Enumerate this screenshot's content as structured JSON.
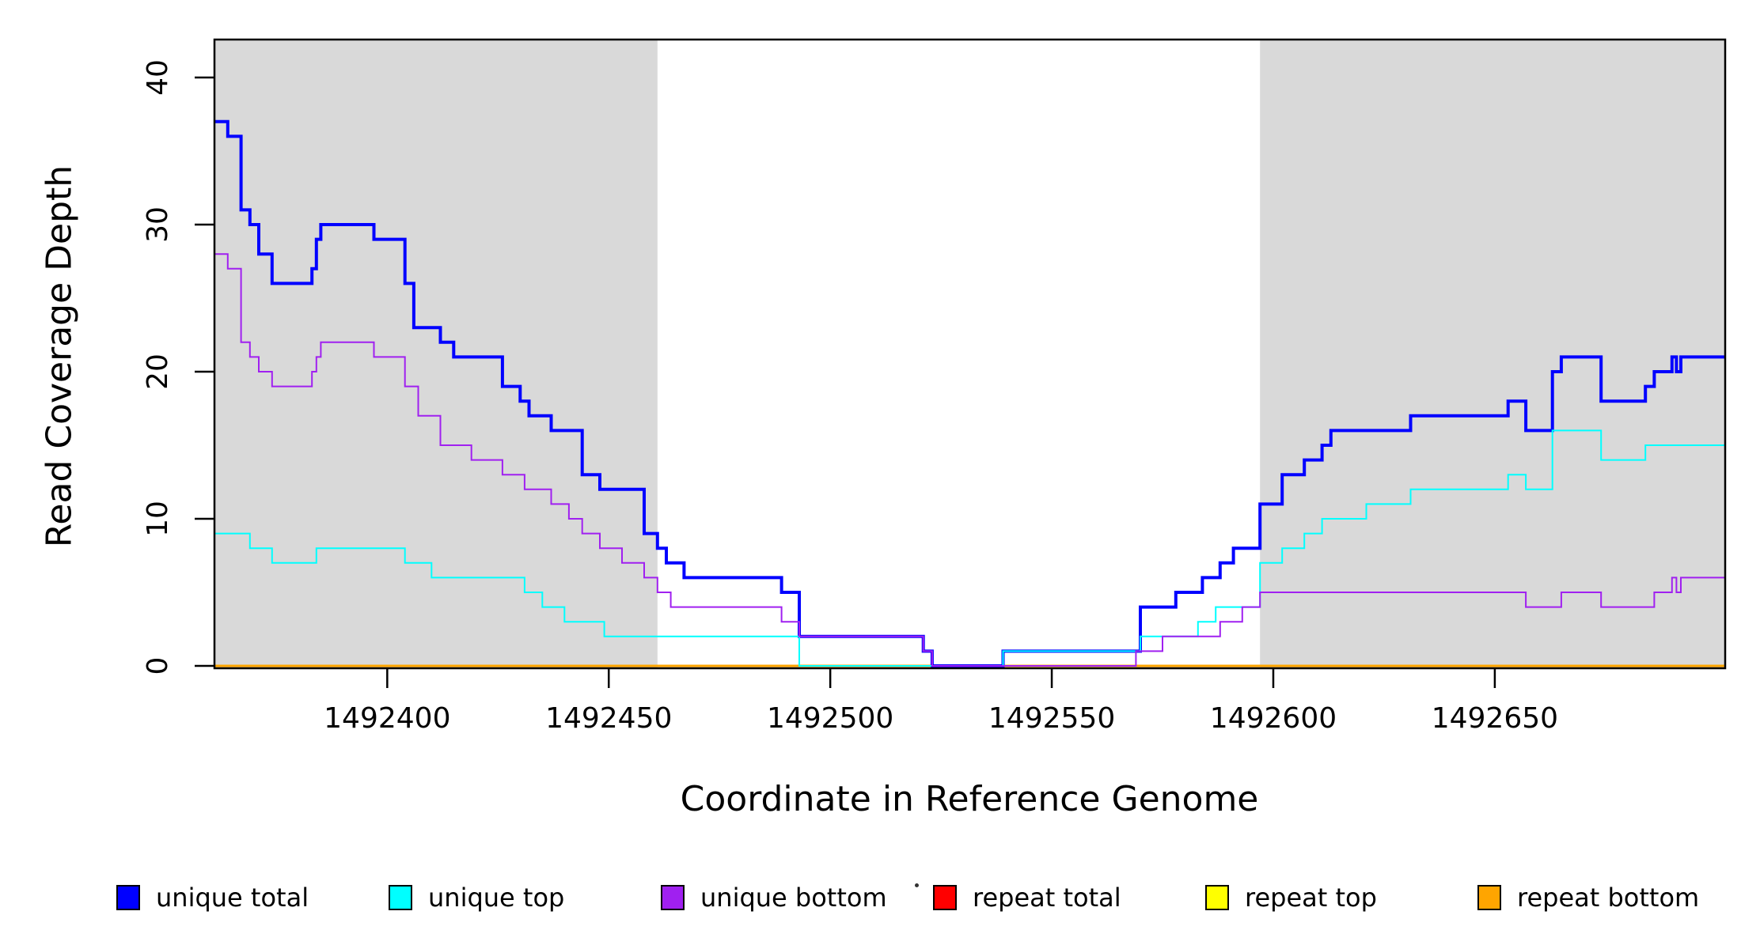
{
  "figure": {
    "xlabel": "Coordinate in Reference Genome",
    "ylabel": "Read Coverage Depth",
    "background_color": "#FFFFFF",
    "shaded_region_color": "#D9D9D9"
  },
  "chart_data": {
    "type": "line",
    "subtype": "step-hv",
    "title": "",
    "xlabel": "Coordinate in Reference Genome",
    "ylabel": "Read Coverage Depth",
    "xlim": [
      1492361,
      1492702
    ],
    "ylim": [
      0,
      42.7
    ],
    "x_ticks": [
      1492400,
      1492450,
      1492500,
      1492550,
      1492600,
      1492650
    ],
    "y_ticks": [
      0,
      10,
      20,
      30,
      40
    ],
    "grid": false,
    "legend_position": "bottom",
    "shaded_regions": [
      {
        "name": "left-gray-region",
        "x0": 1492361,
        "x1": 1492461
      },
      {
        "name": "right-gray-region",
        "x0": 1492597,
        "x1": 1492702
      }
    ],
    "draw_order": [
      "repeat total",
      "repeat top",
      "repeat bottom",
      "unique total",
      "unique top",
      "unique bottom"
    ],
    "series": [
      {
        "name": "unique total",
        "color": "#0000FF",
        "line_width": 4,
        "points": [
          [
            1492361,
            37
          ],
          [
            1492364,
            36
          ],
          [
            1492367,
            31
          ],
          [
            1492369,
            30
          ],
          [
            1492371,
            28
          ],
          [
            1492374,
            26
          ],
          [
            1492383,
            27
          ],
          [
            1492384,
            29
          ],
          [
            1492385,
            30
          ],
          [
            1492397,
            29
          ],
          [
            1492404,
            26
          ],
          [
            1492406,
            23
          ],
          [
            1492412,
            22
          ],
          [
            1492415,
            21
          ],
          [
            1492426,
            19
          ],
          [
            1492430,
            18
          ],
          [
            1492432,
            17
          ],
          [
            1492437,
            16
          ],
          [
            1492444,
            13
          ],
          [
            1492448,
            12
          ],
          [
            1492458,
            9
          ],
          [
            1492461,
            8
          ],
          [
            1492463,
            7
          ],
          [
            1492467,
            6
          ],
          [
            1492489,
            5
          ],
          [
            1492493,
            2
          ],
          [
            1492521,
            1
          ],
          [
            1492523,
            0
          ],
          [
            1492539,
            1
          ],
          [
            1492570,
            4
          ],
          [
            1492578,
            5
          ],
          [
            1492584,
            6
          ],
          [
            1492588,
            7
          ],
          [
            1492591,
            8
          ],
          [
            1492597,
            11
          ],
          [
            1492602,
            13
          ],
          [
            1492607,
            14
          ],
          [
            1492611,
            15
          ],
          [
            1492613,
            16
          ],
          [
            1492631,
            17
          ],
          [
            1492653,
            18
          ],
          [
            1492657,
            16
          ],
          [
            1492663,
            20
          ],
          [
            1492665,
            21
          ],
          [
            1492674,
            18
          ],
          [
            1492684,
            19
          ],
          [
            1492686,
            20
          ],
          [
            1492690,
            21
          ],
          [
            1492691,
            20
          ],
          [
            1492692,
            21
          ]
        ]
      },
      {
        "name": "unique top",
        "color": "#00FFFF",
        "line_width": 2,
        "points": [
          [
            1492361,
            9
          ],
          [
            1492369,
            8
          ],
          [
            1492374,
            7
          ],
          [
            1492384,
            8
          ],
          [
            1492404,
            7
          ],
          [
            1492410,
            6
          ],
          [
            1492431,
            5
          ],
          [
            1492435,
            4
          ],
          [
            1492440,
            3
          ],
          [
            1492449,
            2
          ],
          [
            1492493,
            0
          ],
          [
            1492539,
            1
          ],
          [
            1492570,
            2
          ],
          [
            1492583,
            3
          ],
          [
            1492587,
            4
          ],
          [
            1492597,
            7
          ],
          [
            1492602,
            8
          ],
          [
            1492607,
            9
          ],
          [
            1492611,
            10
          ],
          [
            1492621,
            11
          ],
          [
            1492631,
            12
          ],
          [
            1492653,
            13
          ],
          [
            1492657,
            12
          ],
          [
            1492663,
            16
          ],
          [
            1492674,
            14
          ],
          [
            1492684,
            15
          ]
        ]
      },
      {
        "name": "unique bottom",
        "color": "#A020F0",
        "line_width": 2,
        "points": [
          [
            1492361,
            28
          ],
          [
            1492364,
            27
          ],
          [
            1492367,
            22
          ],
          [
            1492369,
            21
          ],
          [
            1492371,
            20
          ],
          [
            1492374,
            19
          ],
          [
            1492383,
            20
          ],
          [
            1492384,
            21
          ],
          [
            1492385,
            22
          ],
          [
            1492397,
            21
          ],
          [
            1492404,
            19
          ],
          [
            1492407,
            17
          ],
          [
            1492412,
            15
          ],
          [
            1492419,
            14
          ],
          [
            1492426,
            13
          ],
          [
            1492431,
            12
          ],
          [
            1492437,
            11
          ],
          [
            1492441,
            10
          ],
          [
            1492444,
            9
          ],
          [
            1492448,
            8
          ],
          [
            1492453,
            7
          ],
          [
            1492458,
            6
          ],
          [
            1492461,
            5
          ],
          [
            1492464,
            4
          ],
          [
            1492489,
            3
          ],
          [
            1492493,
            2
          ],
          [
            1492521,
            1
          ],
          [
            1492523,
            0
          ],
          [
            1492569,
            1
          ],
          [
            1492575,
            2
          ],
          [
            1492588,
            3
          ],
          [
            1492593,
            4
          ],
          [
            1492597,
            5
          ],
          [
            1492657,
            4
          ],
          [
            1492665,
            5
          ],
          [
            1492674,
            4
          ],
          [
            1492686,
            5
          ],
          [
            1492690,
            6
          ],
          [
            1492691,
            5
          ],
          [
            1492692,
            6
          ]
        ]
      },
      {
        "name": "repeat total",
        "color": "#FF0000",
        "line_width": 2,
        "points": [
          [
            1492361,
            0
          ]
        ]
      },
      {
        "name": "repeat top",
        "color": "#FFFF00",
        "line_width": 2,
        "points": [
          [
            1492361,
            0
          ]
        ]
      },
      {
        "name": "repeat bottom",
        "color": "#FFA500",
        "line_width": 3,
        "points": [
          [
            1492361,
            0
          ]
        ]
      }
    ]
  }
}
